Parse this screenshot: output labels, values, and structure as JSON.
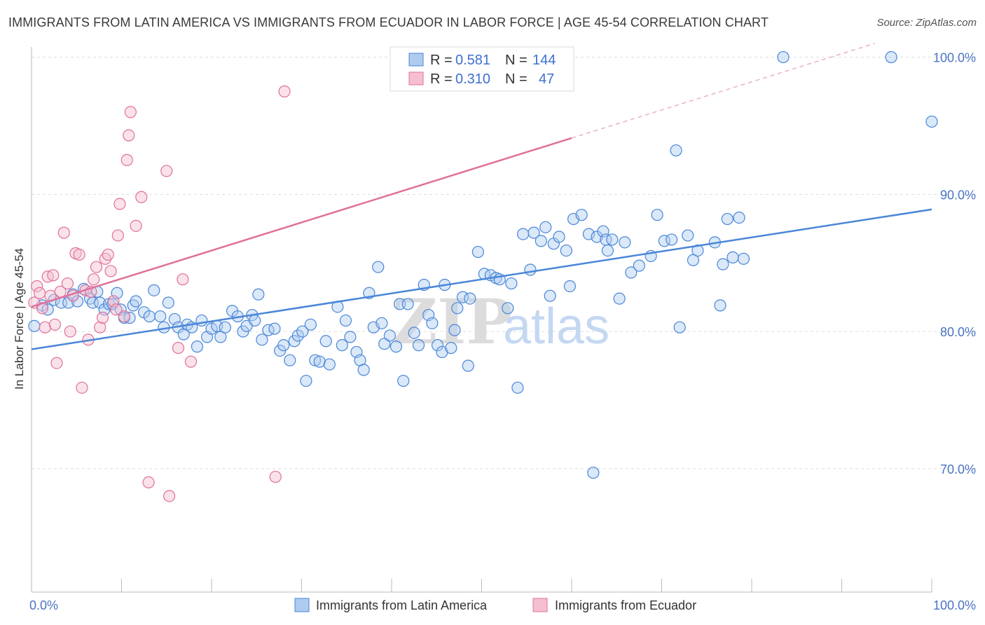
{
  "header": {
    "title": "IMMIGRANTS FROM LATIN AMERICA VS IMMIGRANTS FROM ECUADOR IN LABOR FORCE | AGE 45-54 CORRELATION CHART",
    "source": "Source: ZipAtlas.com"
  },
  "watermark": {
    "zip": "ZIP",
    "atlas": "atlas"
  },
  "legend": {
    "rows": [
      {
        "r_label": "R =",
        "r_value": "0.581",
        "n_label": "N =",
        "n_value": "144"
      },
      {
        "r_label": "R =",
        "r_value": "0.310",
        "n_label": "N =",
        "n_value": "47"
      }
    ]
  },
  "bottom_legend": {
    "items": [
      "Immigrants from Latin America",
      "Immigrants from Ecuador"
    ]
  },
  "chart_data": {
    "type": "scatter",
    "title": "IMMIGRANTS FROM LATIN AMERICA VS IMMIGRANTS FROM ECUADOR IN LABOR FORCE | AGE 45-54 CORRELATION CHART",
    "xlabel": "",
    "ylabel": "In Labor Force | Age 45-54",
    "xlim": [
      0,
      100
    ],
    "ylim": [
      61,
      101
    ],
    "x_tick_labels": [
      "0.0%",
      "100.0%"
    ],
    "y_ticks": [
      70,
      80,
      90,
      100
    ],
    "y_tick_labels": [
      "70.0%",
      "80.0%",
      "90.0%",
      "100.0%"
    ],
    "grid": true,
    "colors": {
      "blue": "#4a86d8",
      "blue_fill": "#aecbf0",
      "pink": "#e0709a",
      "pink_fill": "#f5bfd0",
      "tick": "#4a74c4"
    },
    "series": [
      {
        "name": "Immigrants from Latin America",
        "color": "#4a86d8",
        "trend": {
          "x": [
            0,
            100
          ],
          "y": [
            78.7,
            88.9
          ]
        },
        "points": [
          [
            0.3,
            80.4
          ],
          [
            1.2,
            81.9
          ],
          [
            1.8,
            81.6
          ],
          [
            2.5,
            82.3
          ],
          [
            3.3,
            82.1
          ],
          [
            4.1,
            82.1
          ],
          [
            4.6,
            82.7
          ],
          [
            5.1,
            82.2
          ],
          [
            5.8,
            83.1
          ],
          [
            6.5,
            82.4
          ],
          [
            6.8,
            82.1
          ],
          [
            7.3,
            82.9
          ],
          [
            7.6,
            82.1
          ],
          [
            8.1,
            81.6
          ],
          [
            8.6,
            82.0
          ],
          [
            9.0,
            82.0
          ],
          [
            9.5,
            82.8
          ],
          [
            9.9,
            81.6
          ],
          [
            10.3,
            81.0
          ],
          [
            10.9,
            81.0
          ],
          [
            11.3,
            81.9
          ],
          [
            11.6,
            82.2
          ],
          [
            12.5,
            81.4
          ],
          [
            13.1,
            81.1
          ],
          [
            13.6,
            83.0
          ],
          [
            14.3,
            81.1
          ],
          [
            14.7,
            80.3
          ],
          [
            15.2,
            82.1
          ],
          [
            15.9,
            80.9
          ],
          [
            16.3,
            80.3
          ],
          [
            16.9,
            79.8
          ],
          [
            17.3,
            80.5
          ],
          [
            17.8,
            80.3
          ],
          [
            18.4,
            78.9
          ],
          [
            18.9,
            80.8
          ],
          [
            19.5,
            79.6
          ],
          [
            20.0,
            80.2
          ],
          [
            20.6,
            80.4
          ],
          [
            21.0,
            79.6
          ],
          [
            21.5,
            80.3
          ],
          [
            22.3,
            81.5
          ],
          [
            22.9,
            81.1
          ],
          [
            23.5,
            80.0
          ],
          [
            23.9,
            80.4
          ],
          [
            24.5,
            81.2
          ],
          [
            24.8,
            80.8
          ],
          [
            25.2,
            82.7
          ],
          [
            25.6,
            79.4
          ],
          [
            26.3,
            80.1
          ],
          [
            27.0,
            80.2
          ],
          [
            27.6,
            78.6
          ],
          [
            28.0,
            79.0
          ],
          [
            28.7,
            77.9
          ],
          [
            29.2,
            79.3
          ],
          [
            29.6,
            79.7
          ],
          [
            30.1,
            80.0
          ],
          [
            30.5,
            76.4
          ],
          [
            31.0,
            80.5
          ],
          [
            31.5,
            77.9
          ],
          [
            32.0,
            77.8
          ],
          [
            32.7,
            79.3
          ],
          [
            33.1,
            77.6
          ],
          [
            34.0,
            81.8
          ],
          [
            34.5,
            79.0
          ],
          [
            34.9,
            80.8
          ],
          [
            35.4,
            79.6
          ],
          [
            36.1,
            78.5
          ],
          [
            36.5,
            77.9
          ],
          [
            36.9,
            77.2
          ],
          [
            37.5,
            82.8
          ],
          [
            38.0,
            80.3
          ],
          [
            38.5,
            84.7
          ],
          [
            38.9,
            80.6
          ],
          [
            39.2,
            79.1
          ],
          [
            39.8,
            79.7
          ],
          [
            40.5,
            78.9
          ],
          [
            40.9,
            82.0
          ],
          [
            41.3,
            76.4
          ],
          [
            41.8,
            82.0
          ],
          [
            42.5,
            79.9
          ],
          [
            43.0,
            79.0
          ],
          [
            43.6,
            83.4
          ],
          [
            44.1,
            81.2
          ],
          [
            44.5,
            80.6
          ],
          [
            45.1,
            79.0
          ],
          [
            45.6,
            78.5
          ],
          [
            45.9,
            83.4
          ],
          [
            46.6,
            78.8
          ],
          [
            47.0,
            80.1
          ],
          [
            47.3,
            81.7
          ],
          [
            47.9,
            82.5
          ],
          [
            48.5,
            77.5
          ],
          [
            48.7,
            82.4
          ],
          [
            49.6,
            85.8
          ],
          [
            50.3,
            84.2
          ],
          [
            51.0,
            84.1
          ],
          [
            51.6,
            83.9
          ],
          [
            52.0,
            83.8
          ],
          [
            52.9,
            81.7
          ],
          [
            53.3,
            83.5
          ],
          [
            54.0,
            75.9
          ],
          [
            54.6,
            87.1
          ],
          [
            55.4,
            84.5
          ],
          [
            55.8,
            87.2
          ],
          [
            56.6,
            86.6
          ],
          [
            57.1,
            87.6
          ],
          [
            57.6,
            82.6
          ],
          [
            58.0,
            86.4
          ],
          [
            58.6,
            86.9
          ],
          [
            59.4,
            85.9
          ],
          [
            59.8,
            83.3
          ],
          [
            60.2,
            88.2
          ],
          [
            61.1,
            88.5
          ],
          [
            61.9,
            87.1
          ],
          [
            62.4,
            69.7
          ],
          [
            62.8,
            86.9
          ],
          [
            63.5,
            87.3
          ],
          [
            63.8,
            86.7
          ],
          [
            64.0,
            85.9
          ],
          [
            64.5,
            86.7
          ],
          [
            65.3,
            82.4
          ],
          [
            65.9,
            86.5
          ],
          [
            66.6,
            84.3
          ],
          [
            67.5,
            84.8
          ],
          [
            68.8,
            85.5
          ],
          [
            69.5,
            88.5
          ],
          [
            70.3,
            86.6
          ],
          [
            71.1,
            86.7
          ],
          [
            71.6,
            93.2
          ],
          [
            72.0,
            80.3
          ],
          [
            72.9,
            87.0
          ],
          [
            73.5,
            85.2
          ],
          [
            74.0,
            85.9
          ],
          [
            75.9,
            86.5
          ],
          [
            76.5,
            81.9
          ],
          [
            76.8,
            84.9
          ],
          [
            77.3,
            88.2
          ],
          [
            77.9,
            85.4
          ],
          [
            78.6,
            88.3
          ],
          [
            79.1,
            85.3
          ],
          [
            83.5,
            100.0
          ],
          [
            95.5,
            100.0
          ],
          [
            100.0,
            95.3
          ]
        ]
      },
      {
        "name": "Immigrants from Ecuador",
        "color": "#e0709a",
        "trend": {
          "x": [
            0,
            60
          ],
          "y": [
            81.8,
            94.1
          ]
        },
        "trend_extension": {
          "x": [
            60,
            100
          ],
          "y": [
            94.1,
            102.3
          ]
        },
        "points": [
          [
            0.3,
            82.1
          ],
          [
            0.6,
            83.3
          ],
          [
            0.9,
            82.8
          ],
          [
            1.2,
            81.7
          ],
          [
            1.5,
            80.3
          ],
          [
            1.8,
            84.0
          ],
          [
            2.1,
            82.6
          ],
          [
            2.4,
            84.1
          ],
          [
            2.6,
            80.5
          ],
          [
            2.8,
            77.7
          ],
          [
            3.2,
            82.9
          ],
          [
            3.6,
            87.2
          ],
          [
            4.0,
            83.5
          ],
          [
            4.3,
            80.0
          ],
          [
            4.6,
            82.6
          ],
          [
            4.9,
            85.7
          ],
          [
            5.3,
            85.6
          ],
          [
            5.6,
            75.9
          ],
          [
            6.0,
            83.0
          ],
          [
            6.3,
            79.4
          ],
          [
            6.6,
            82.9
          ],
          [
            6.9,
            83.8
          ],
          [
            7.2,
            84.7
          ],
          [
            7.6,
            80.3
          ],
          [
            7.9,
            81.0
          ],
          [
            8.2,
            85.3
          ],
          [
            8.5,
            85.6
          ],
          [
            8.8,
            84.4
          ],
          [
            9.1,
            82.2
          ],
          [
            9.4,
            81.6
          ],
          [
            9.6,
            87.0
          ],
          [
            9.8,
            89.3
          ],
          [
            10.3,
            81.1
          ],
          [
            10.6,
            92.5
          ],
          [
            10.8,
            94.3
          ],
          [
            11.0,
            96.0
          ],
          [
            11.6,
            87.7
          ],
          [
            12.2,
            89.8
          ],
          [
            13.0,
            69.0
          ],
          [
            15.0,
            91.7
          ],
          [
            15.3,
            68.0
          ],
          [
            16.3,
            78.8
          ],
          [
            16.8,
            83.8
          ],
          [
            17.7,
            77.8
          ],
          [
            27.1,
            69.4
          ],
          [
            28.1,
            97.5
          ],
          [
            59.5,
            100.0
          ]
        ]
      }
    ]
  }
}
